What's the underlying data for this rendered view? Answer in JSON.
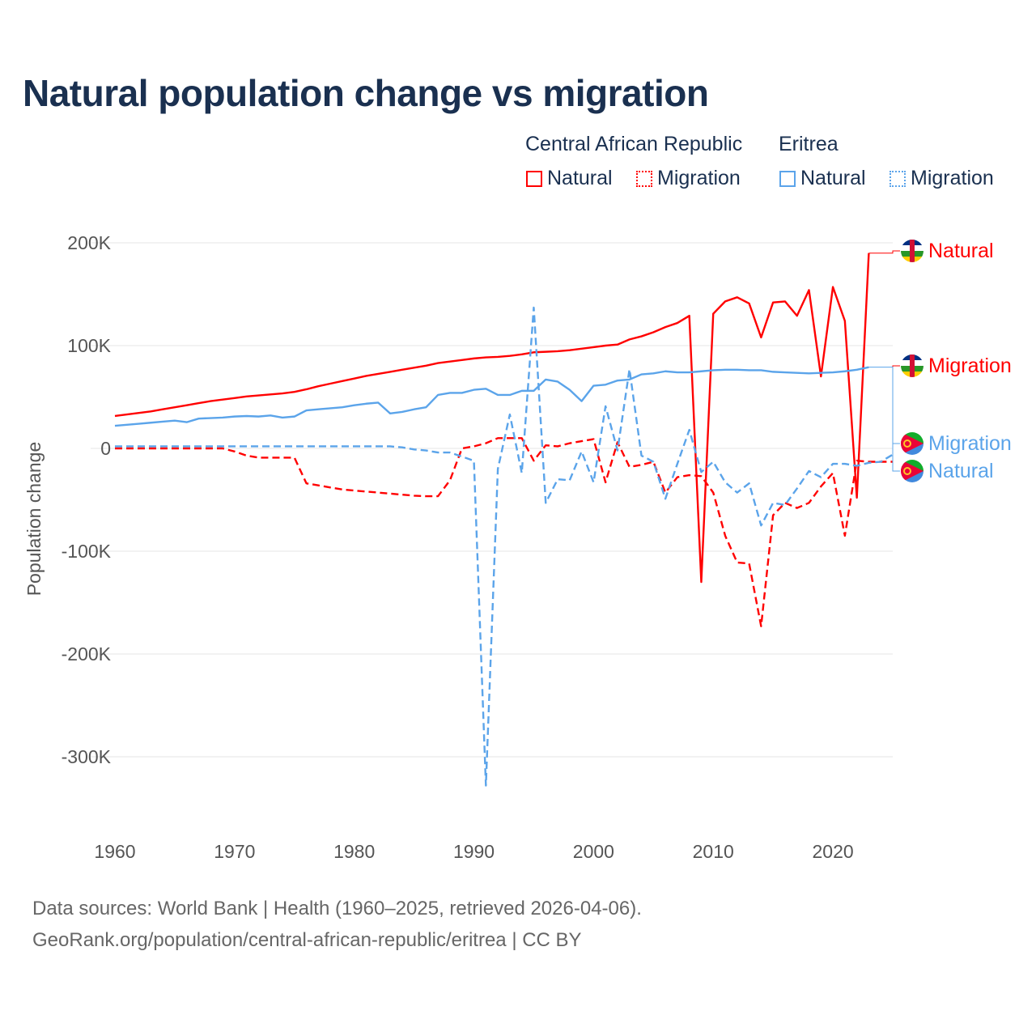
{
  "title": "Natural population change vs migration",
  "legend": {
    "groups": [
      {
        "name": "Central African Republic",
        "color": "#ff0000",
        "items": [
          "Natural",
          "Migration"
        ]
      },
      {
        "name": "Eritrea",
        "color": "#5ba4ea",
        "items": [
          "Natural",
          "Migration"
        ]
      }
    ]
  },
  "footer": {
    "line1": "Data sources: World Bank | Health (1960–2025, retrieved 2026-04-06).",
    "line2": "GeoRank.org/population/central-african-republic/eritrea | CC BY"
  },
  "chart_data": {
    "type": "line",
    "title": "Natural population change vs migration",
    "xlabel": "",
    "ylabel": "Population change",
    "xlim": [
      1960,
      2025
    ],
    "ylim": [
      -350000,
      200000
    ],
    "xticks": [
      1960,
      1970,
      1980,
      1990,
      2000,
      2010,
      2020
    ],
    "xtick_labels": [
      "1960",
      "1970",
      "1980",
      "1990",
      "2000",
      "2010",
      "2020"
    ],
    "yticks": [
      200000,
      100000,
      0,
      -100000,
      -200000,
      -300000
    ],
    "ytick_labels": [
      "200K",
      "100K",
      "0",
      "-100K",
      "-200K",
      "-300K"
    ],
    "grid": true,
    "legend_position": "top-right",
    "series": [
      {
        "name": "Central African Republic Natural",
        "end_label": "Natural",
        "color": "#ff0000",
        "dash": false,
        "start": 1960,
        "values": [
          31500,
          33000,
          34500,
          36000,
          38000,
          40000,
          42000,
          44000,
          46000,
          47500,
          49000,
          50500,
          51500,
          52500,
          53500,
          55000,
          57500,
          60500,
          63000,
          65500,
          68000,
          70500,
          72500,
          74500,
          76500,
          78500,
          80500,
          83000,
          84500,
          86000,
          87500,
          88500,
          89000,
          90000,
          91500,
          93500,
          94000,
          94500,
          95500,
          97000,
          98500,
          100000,
          101000,
          106000,
          109000,
          113000,
          118000,
          122000,
          129000,
          -130000,
          131000,
          143000,
          147000,
          141000,
          108000,
          142000,
          143000,
          129000,
          154000,
          70000,
          157000,
          124000,
          -48000,
          190000
        ]
      },
      {
        "name": "Central African Republic Migration",
        "end_label": "Migration",
        "color": "#ff0000",
        "dash": true,
        "start": 1960,
        "values": [
          0,
          0,
          0,
          0,
          0,
          0,
          0,
          0,
          0,
          0,
          -3000,
          -7000,
          -9000,
          -9000,
          -9000,
          -9000,
          -34000,
          -36000,
          -38000,
          -40000,
          -41000,
          -42000,
          -43000,
          -44000,
          -45000,
          -46000,
          -46500,
          -46500,
          -31000,
          0,
          2000,
          5000,
          10000,
          10000,
          10000,
          -12000,
          3000,
          2000,
          5000,
          7000,
          9000,
          -33000,
          6000,
          -18000,
          -16000,
          -13000,
          -43000,
          -28000,
          -26000,
          -27000,
          -43000,
          -85000,
          -111000,
          -112000,
          -173000,
          -65000,
          -53000,
          -58000,
          -53000,
          -37000,
          -24000,
          -85000,
          -12000,
          -13000,
          -13000,
          -13000
        ]
      },
      {
        "name": "Eritrea Natural",
        "end_label": "Natural",
        "color": "#5ba4ea",
        "dash": false,
        "start": 1960,
        "values": [
          22000,
          23000,
          24000,
          25000,
          26000,
          27000,
          25500,
          29000,
          29500,
          30000,
          31000,
          31500,
          31000,
          32000,
          30000,
          31000,
          37000,
          38000,
          39000,
          40000,
          42000,
          43500,
          44500,
          34000,
          35500,
          38000,
          40000,
          52000,
          54000,
          54000,
          57000,
          58000,
          52000,
          52000,
          56000,
          56000,
          67000,
          65000,
          57000,
          46000,
          61000,
          62000,
          66000,
          67000,
          72000,
          73000,
          75000,
          74000,
          74000,
          75000,
          76000,
          76500,
          76500,
          76000,
          76000,
          74500,
          74000,
          73500,
          73000,
          73500,
          74000,
          75000,
          76500,
          79000
        ]
      },
      {
        "name": "Eritrea Migration",
        "end_label": "Migration",
        "color": "#5ba4ea",
        "dash": true,
        "start": 1960,
        "values": [
          2000,
          2000,
          2000,
          2000,
          2000,
          2000,
          2000,
          2000,
          2000,
          2000,
          2000,
          2000,
          2000,
          2000,
          2000,
          2000,
          2000,
          2000,
          2000,
          2000,
          2000,
          2000,
          2000,
          2000,
          1000,
          -1000,
          -2000,
          -4000,
          -4000,
          -8000,
          -12000,
          -328000,
          -20000,
          33000,
          -24000,
          137000,
          -53000,
          -30000,
          -31000,
          -3000,
          -33000,
          41000,
          -2000,
          77000,
          -7000,
          -13000,
          -49000,
          -15000,
          18000,
          -23000,
          -13000,
          -33000,
          -43000,
          -34000,
          -75000,
          -53000,
          -55000,
          -39000,
          -22000,
          -28000,
          -15000,
          -15000,
          -17000,
          -14000,
          -13000,
          -6000
        ]
      }
    ]
  }
}
